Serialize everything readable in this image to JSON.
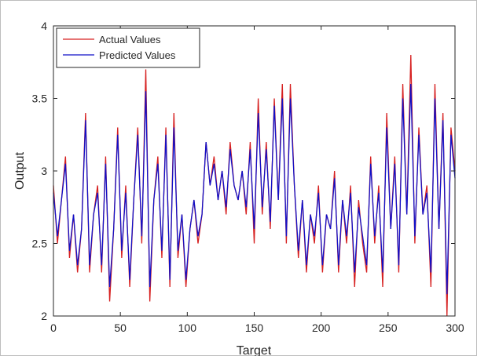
{
  "chart_data": {
    "type": "line",
    "xlabel": "Target",
    "ylabel": "Output",
    "xlim": [
      0,
      300
    ],
    "ylim": [
      2,
      4
    ],
    "xticks": [
      0,
      50,
      100,
      150,
      200,
      250,
      300
    ],
    "yticks": [
      2,
      2.5,
      3,
      3.5,
      4
    ],
    "legend": "upper left",
    "x": [
      0,
      3,
      6,
      9,
      12,
      15,
      18,
      21,
      24,
      27,
      30,
      33,
      36,
      39,
      42,
      45,
      48,
      51,
      54,
      57,
      60,
      63,
      66,
      69,
      72,
      75,
      78,
      81,
      84,
      87,
      90,
      93,
      96,
      99,
      102,
      105,
      108,
      111,
      114,
      117,
      120,
      123,
      126,
      129,
      132,
      135,
      138,
      141,
      144,
      147,
      150,
      153,
      156,
      159,
      162,
      165,
      168,
      171,
      174,
      177,
      180,
      183,
      186,
      189,
      192,
      195,
      198,
      201,
      204,
      207,
      210,
      213,
      216,
      219,
      222,
      225,
      228,
      231,
      234,
      237,
      240,
      243,
      246,
      249,
      252,
      255,
      258,
      261,
      264,
      267,
      270,
      273,
      276,
      279,
      282,
      285,
      288,
      291,
      294,
      297,
      300
    ],
    "series": [
      {
        "name": "Actual Values",
        "color": "#d62020",
        "values": [
          2.9,
          2.5,
          2.8,
          3.1,
          2.4,
          2.7,
          2.3,
          2.6,
          3.4,
          2.3,
          2.7,
          2.9,
          2.3,
          3.1,
          2.1,
          2.6,
          3.3,
          2.4,
          2.9,
          2.2,
          2.8,
          3.3,
          2.5,
          3.7,
          2.1,
          2.8,
          3.1,
          2.4,
          3.3,
          2.2,
          3.4,
          2.4,
          2.7,
          2.2,
          2.6,
          2.8,
          2.5,
          2.7,
          3.2,
          2.9,
          3.1,
          2.8,
          3.0,
          2.7,
          3.2,
          2.9,
          2.8,
          3.0,
          2.7,
          3.2,
          2.5,
          3.5,
          2.7,
          3.2,
          2.6,
          3.5,
          2.8,
          3.6,
          2.5,
          3.6,
          2.9,
          2.4,
          2.8,
          2.3,
          2.7,
          2.5,
          2.9,
          2.3,
          2.7,
          2.6,
          3.0,
          2.3,
          2.8,
          2.5,
          2.9,
          2.2,
          2.8,
          2.5,
          2.3,
          3.1,
          2.5,
          2.9,
          2.2,
          3.4,
          2.6,
          3.1,
          2.3,
          3.6,
          2.7,
          3.8,
          2.5,
          3.3,
          2.7,
          2.9,
          2.2,
          3.6,
          2.6,
          3.4,
          2.0,
          3.3,
          3.0
        ]
      },
      {
        "name": "Predicted Values",
        "color": "#1010c8",
        "values": [
          2.85,
          2.55,
          2.8,
          3.05,
          2.45,
          2.7,
          2.35,
          2.6,
          3.35,
          2.35,
          2.7,
          2.85,
          2.35,
          3.05,
          2.2,
          2.6,
          3.25,
          2.45,
          2.85,
          2.25,
          2.8,
          3.25,
          2.55,
          3.55,
          2.2,
          2.8,
          3.05,
          2.45,
          3.25,
          2.25,
          3.3,
          2.45,
          2.7,
          2.25,
          2.6,
          2.8,
          2.55,
          2.7,
          3.2,
          2.9,
          3.05,
          2.8,
          3.0,
          2.75,
          3.15,
          2.9,
          2.8,
          3.0,
          2.75,
          3.15,
          2.6,
          3.4,
          2.75,
          3.15,
          2.65,
          3.45,
          2.8,
          3.5,
          2.55,
          3.5,
          2.9,
          2.45,
          2.8,
          2.35,
          2.7,
          2.55,
          2.85,
          2.35,
          2.7,
          2.6,
          2.95,
          2.35,
          2.8,
          2.55,
          2.85,
          2.3,
          2.75,
          2.55,
          2.35,
          3.05,
          2.55,
          2.85,
          2.3,
          3.3,
          2.6,
          3.05,
          2.35,
          3.5,
          2.7,
          3.6,
          2.55,
          3.25,
          2.7,
          2.85,
          2.3,
          3.5,
          2.6,
          3.35,
          2.15,
          3.25,
          2.95
        ]
      }
    ]
  }
}
